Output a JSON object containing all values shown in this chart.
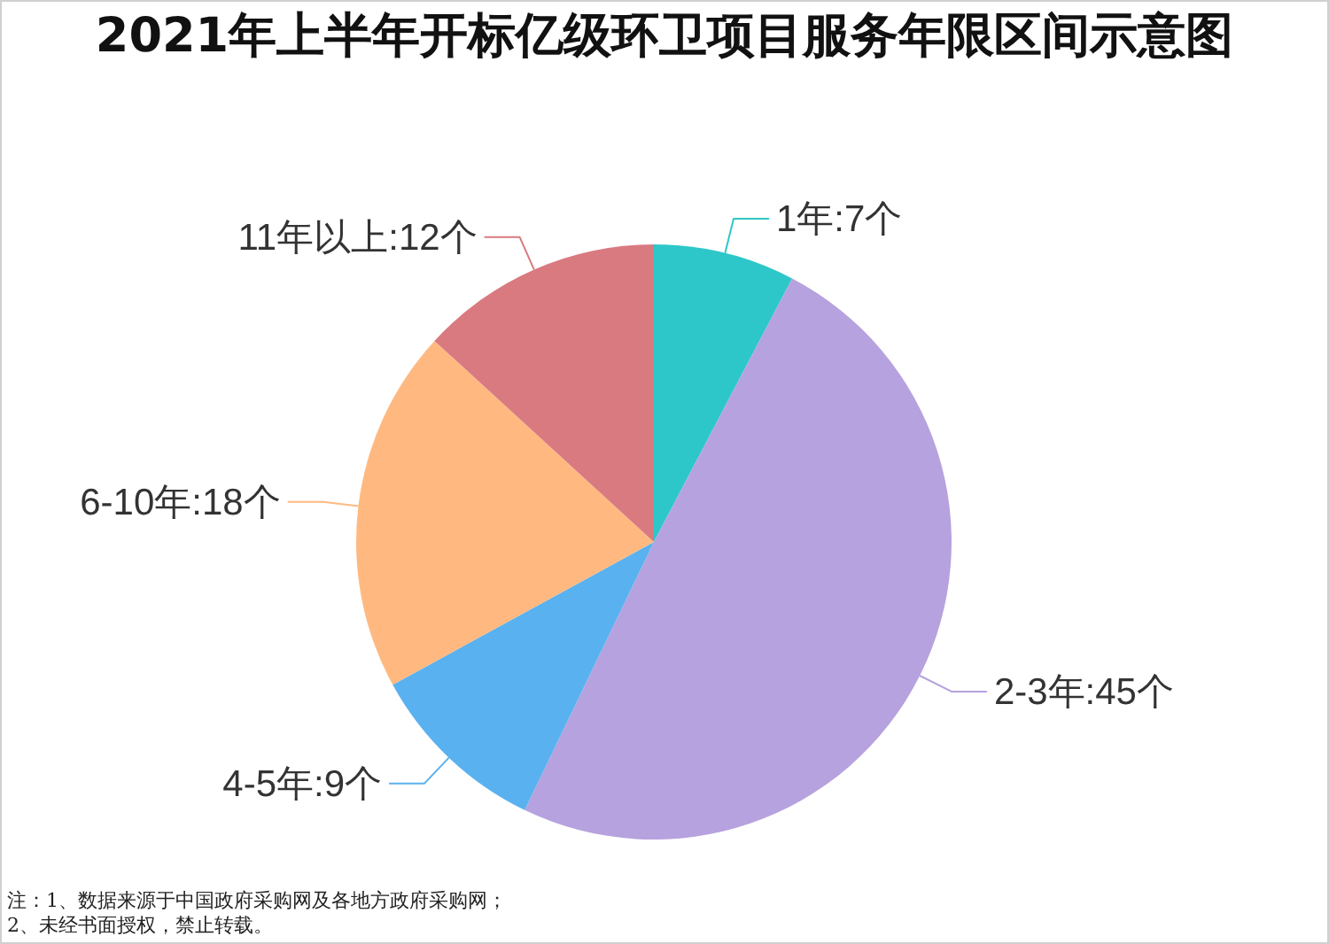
{
  "chart_data": {
    "type": "pie",
    "title": "2021年上半年开标亿级环卫项目服务年限区间示意图",
    "categories": [
      "1年",
      "2-3年",
      "4-5年",
      "6-10年",
      "11年以上"
    ],
    "values": [
      7,
      45,
      9,
      18,
      12
    ],
    "colors": [
      "#2ec7c9",
      "#b6a2de",
      "#5ab1ef",
      "#ffb980",
      "#d87a80"
    ],
    "value_labels": [
      ":7个",
      ":45个",
      ":9个",
      ":18个",
      ":12个"
    ],
    "annotations": [
      "注：1、数据来源于中国政府采购网及各地方政府采购网；",
      "2、未经书面授权，禁止转载。"
    ]
  }
}
